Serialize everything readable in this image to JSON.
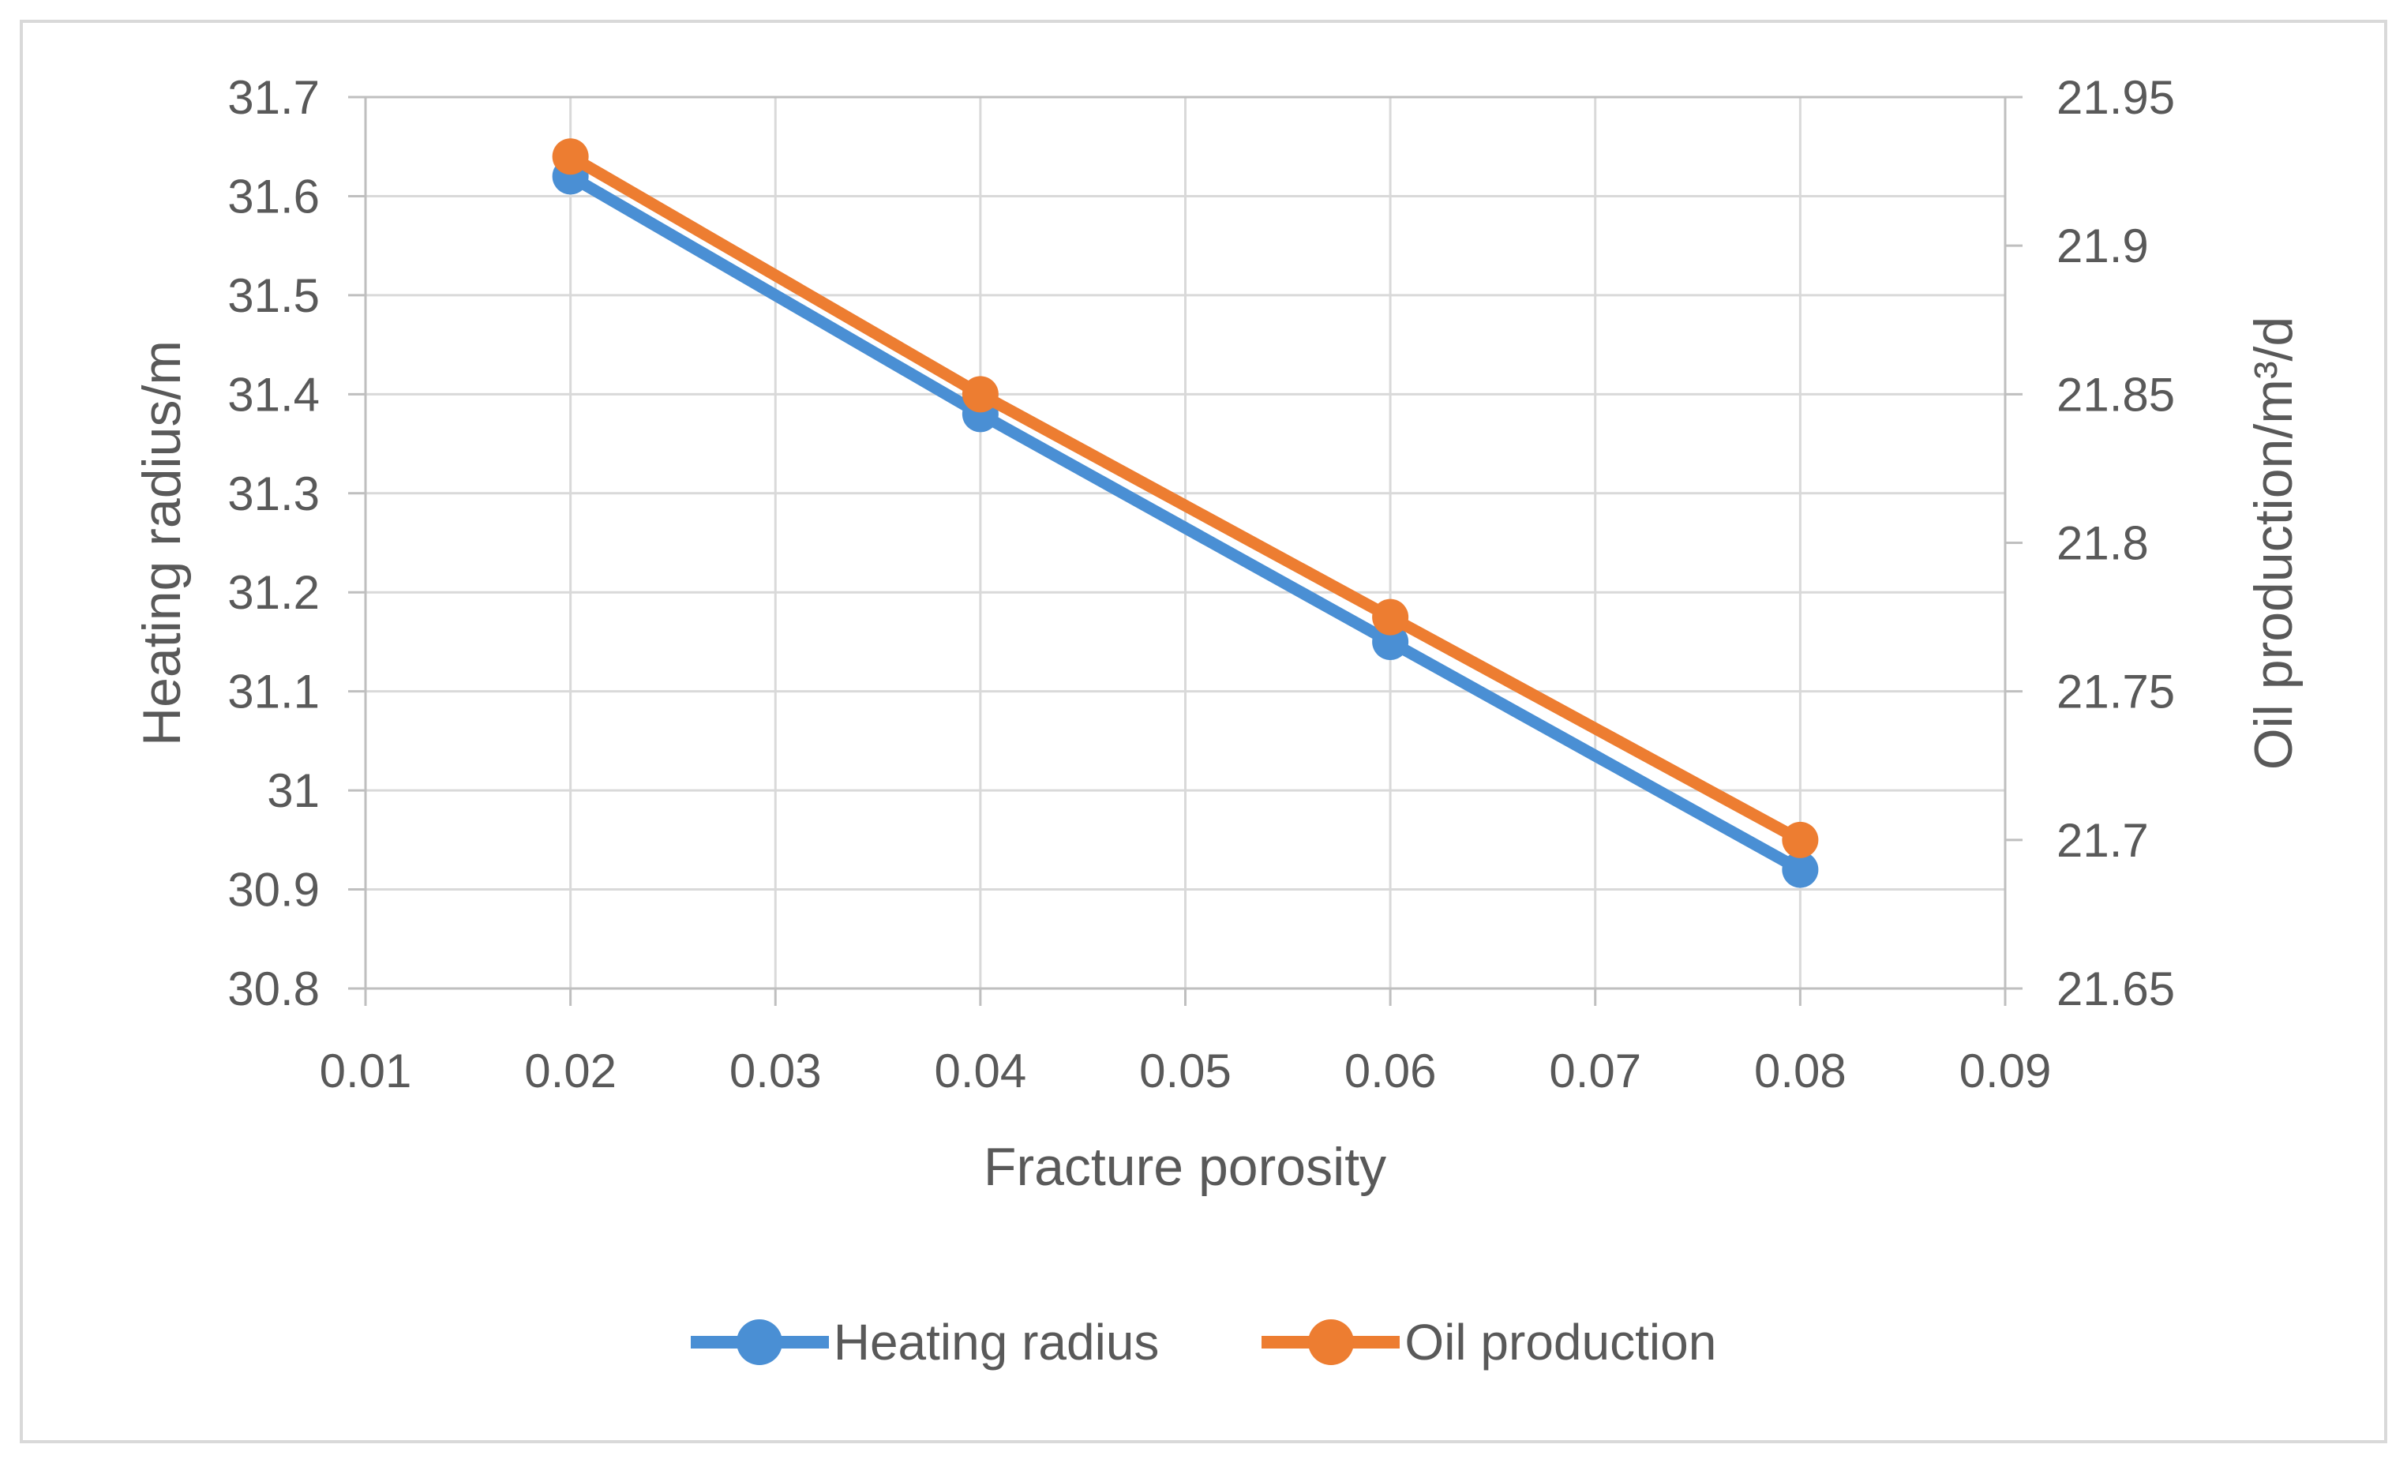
{
  "chart_data": {
    "type": "line",
    "title": "",
    "xlabel": "Fracture porosity",
    "ylabel_left": "Heating radius/m",
    "ylabel_right": "Oil production/m³/d",
    "x": [
      0.02,
      0.04,
      0.06,
      0.08
    ],
    "series": [
      {
        "name": "Heating radius",
        "axis": "left",
        "color": "#4a8fd4",
        "marker": "circle",
        "values": [
          31.62,
          31.38,
          31.15,
          30.92
        ]
      },
      {
        "name": "Oil production",
        "axis": "right",
        "color": "#ed7d31",
        "marker": "circle",
        "values": [
          21.93,
          21.85,
          21.775,
          21.7
        ]
      }
    ],
    "x_axis": {
      "min": 0.01,
      "max": 0.09,
      "ticks": [
        "0.01",
        "0.02",
        "0.03",
        "0.04",
        "0.05",
        "0.06",
        "0.07",
        "0.08",
        "0.09"
      ]
    },
    "y_left": {
      "min": 30.8,
      "max": 31.7,
      "ticks": [
        "31.7",
        "31.6",
        "31.5",
        "31.4",
        "31.3",
        "31.2",
        "31.1",
        "31",
        "30.9",
        "30.8"
      ]
    },
    "y_right": {
      "min": 21.65,
      "max": 21.95,
      "ticks": [
        "21.95",
        "21.9",
        "21.85",
        "21.8",
        "21.75",
        "21.7",
        "21.65"
      ]
    },
    "grid": true,
    "legend_position": "bottom",
    "colors": {
      "gridline": "#d9d9d9",
      "axis_line": "#bfbfbf",
      "tick_text": "#595959",
      "background": "#ffffff",
      "page_border": "#d9d9d9"
    }
  }
}
